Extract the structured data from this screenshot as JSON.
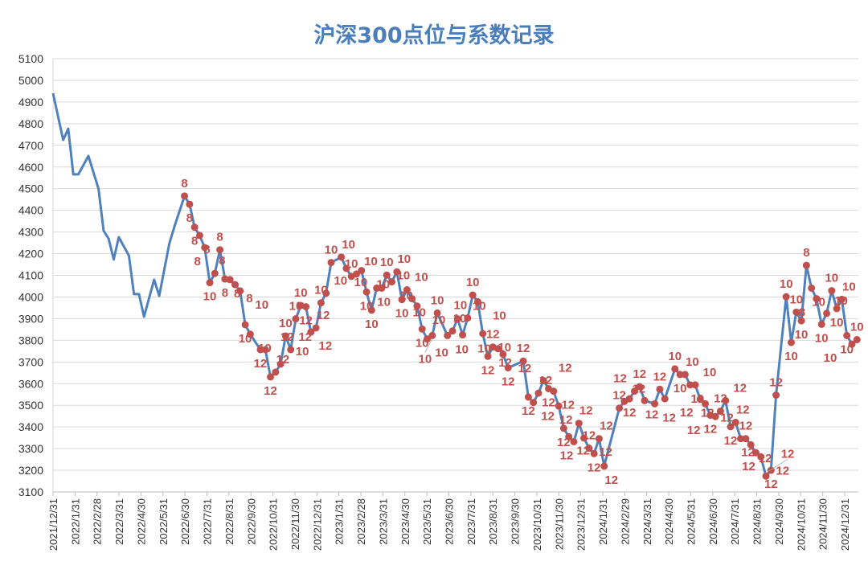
{
  "chart_data": {
    "type": "line",
    "title": "沪深300点位与系数记录",
    "xlabel": "",
    "ylabel": "",
    "ylim": [
      3100,
      5100
    ],
    "y_ticks": [
      3100,
      3200,
      3300,
      3400,
      3500,
      3600,
      3700,
      3800,
      3900,
      4000,
      4100,
      4200,
      4300,
      4400,
      4500,
      4600,
      4700,
      4800,
      4900,
      5000,
      5100
    ],
    "x_ticks": [
      "2021/12/31",
      "2022/1/31",
      "2022/2/28",
      "2022/3/31",
      "2022/4/30",
      "2022/5/31",
      "2022/6/30",
      "2022/7/31",
      "2022/8/31",
      "2022/9/30",
      "2022/10/31",
      "2022/11/30",
      "2022/12/31",
      "2023/1/31",
      "2023/2/28",
      "2023/3/31",
      "2023/4/30",
      "2023/5/31",
      "2023/6/30",
      "2023/7/31",
      "2023/8/31",
      "2023/9/30",
      "2023/10/31",
      "2023/11/30",
      "2023/12/31",
      "2024/1/31",
      "2024/2/29",
      "2024/3/31",
      "2024/4/30",
      "2024/5/31",
      "2024/6/30",
      "2024/7/31",
      "2024/8/31",
      "2024/9/30",
      "2024/10/31",
      "2024/11/30",
      "2024/12/31"
    ],
    "grid": "horizontal",
    "legend": "none",
    "colors": {
      "line": "#4f81bd",
      "marker": "#c0504d",
      "label": "#c0504d",
      "title": "#4a7ebb"
    },
    "series": [
      {
        "points": [
          [
            "2021-12-31",
            4940,
            ""
          ],
          [
            "2022-01-14",
            4725,
            ""
          ],
          [
            "2022-01-21",
            4777,
            ""
          ],
          [
            "2022-01-28",
            4566,
            ""
          ],
          [
            "2022-02-04",
            4566,
            ""
          ],
          [
            "2022-02-18",
            4651,
            ""
          ],
          [
            "2022-03-04",
            4499,
            ""
          ],
          [
            "2022-03-11",
            4306,
            ""
          ],
          [
            "2022-03-18",
            4269,
            ""
          ],
          [
            "2022-03-25",
            4173,
            ""
          ],
          [
            "2022-04-01",
            4276,
            ""
          ],
          [
            "2022-04-15",
            4191,
            ""
          ],
          [
            "2022-04-22",
            4013,
            ""
          ],
          [
            "2022-04-29",
            4013,
            ""
          ],
          [
            "2022-05-06",
            3909,
            ""
          ],
          [
            "2022-05-20",
            4080,
            ""
          ],
          [
            "2022-05-27",
            4005,
            ""
          ],
          [
            "2022-06-10",
            4247,
            ""
          ],
          [
            "2022-06-17",
            4325,
            ""
          ],
          [
            "2022-07-01",
            4466,
            "8"
          ],
          [
            "2022-07-08",
            4428,
            "8"
          ],
          [
            "2022-07-15",
            4322,
            "8"
          ],
          [
            "2022-07-22",
            4284,
            "8"
          ],
          [
            "2022-07-29",
            4228,
            "8"
          ],
          [
            "2022-08-05",
            4066,
            "10"
          ],
          [
            "2022-08-12",
            4109,
            "8"
          ],
          [
            "2022-08-19",
            4218,
            "8"
          ],
          [
            "2022-08-26",
            4083,
            "8"
          ],
          [
            "2022-09-02",
            4080,
            "8"
          ],
          [
            "2022-09-09",
            4057,
            "8"
          ],
          [
            "2022-09-16",
            4028,
            "10"
          ],
          [
            "2022-09-23",
            3872,
            "10"
          ],
          [
            "2022-09-30",
            3828,
            "10"
          ],
          [
            "2022-10-14",
            3757,
            "12"
          ],
          [
            "2022-10-21",
            3757,
            "12"
          ],
          [
            "2022-10-28",
            3631,
            "12"
          ],
          [
            "2022-11-04",
            3653,
            "12"
          ],
          [
            "2022-11-11",
            3690,
            "10"
          ],
          [
            "2022-11-18",
            3820,
            "10"
          ],
          [
            "2022-11-25",
            3757,
            "12"
          ],
          [
            "2022-12-02",
            3899,
            "10"
          ],
          [
            "2022-12-09",
            3961,
            "10"
          ],
          [
            "2022-12-16",
            3955,
            "12"
          ],
          [
            "2022-12-23",
            3838,
            "12"
          ],
          [
            "2022-12-30",
            3857,
            "12"
          ],
          [
            "2023-01-06",
            3973,
            "10"
          ],
          [
            "2023-01-13",
            4017,
            "10"
          ],
          [
            "2023-01-20",
            4159,
            "10"
          ],
          [
            "2023-02-03",
            4184,
            "10"
          ],
          [
            "2023-02-10",
            4132,
            "10"
          ],
          [
            "2023-02-17",
            4095,
            "10"
          ],
          [
            "2023-02-24",
            4106,
            "10"
          ],
          [
            "2023-03-03",
            4122,
            "10"
          ],
          [
            "2023-03-10",
            4023,
            "10"
          ],
          [
            "2023-03-17",
            3939,
            "10"
          ],
          [
            "2023-03-24",
            4041,
            "10"
          ],
          [
            "2023-03-31",
            4041,
            "10"
          ],
          [
            "2023-04-07",
            4101,
            "10"
          ],
          [
            "2023-04-14",
            4070,
            "10"
          ],
          [
            "2023-04-21",
            4116,
            "10"
          ],
          [
            "2023-04-28",
            3988,
            "10"
          ],
          [
            "2023-05-05",
            4033,
            "10"
          ],
          [
            "2023-05-12",
            3992,
            "10"
          ],
          [
            "2023-05-19",
            3958,
            "10"
          ],
          [
            "2023-05-26",
            3852,
            "10"
          ],
          [
            "2023-06-02",
            3806,
            "10"
          ],
          [
            "2023-06-09",
            3822,
            "10"
          ],
          [
            "2023-06-16",
            3926,
            "10"
          ],
          [
            "2023-06-30",
            3822,
            "10"
          ],
          [
            "2023-07-07",
            3843,
            "10"
          ],
          [
            "2023-07-14",
            3899,
            "10"
          ],
          [
            "2023-07-21",
            3825,
            "10"
          ],
          [
            "2023-07-28",
            3903,
            "10"
          ],
          [
            "2023-08-04",
            4009,
            "10"
          ],
          [
            "2023-08-11",
            3978,
            "10"
          ],
          [
            "2023-08-18",
            3831,
            "10"
          ],
          [
            "2023-08-25",
            3726,
            "12"
          ],
          [
            "2023-09-01",
            3769,
            "12"
          ],
          [
            "2023-09-08",
            3761,
            "12"
          ],
          [
            "2023-09-15",
            3735,
            "12"
          ],
          [
            "2023-09-22",
            3673,
            "12"
          ],
          [
            "2023-10-13",
            3704,
            "12"
          ],
          [
            "2023-10-20",
            3538,
            "12"
          ],
          [
            "2023-10-27",
            3513,
            "12"
          ],
          [
            "2023-11-03",
            3556,
            "12"
          ],
          [
            "2023-11-10",
            3614,
            "12"
          ],
          [
            "2023-11-17",
            3577,
            "12"
          ],
          [
            "2023-11-24",
            3565,
            "12"
          ],
          [
            "2023-12-01",
            3497,
            "12"
          ],
          [
            "2023-12-08",
            3394,
            "12"
          ],
          [
            "2023-12-15",
            3355,
            "12"
          ],
          [
            "2023-12-22",
            3332,
            "12"
          ],
          [
            "2023-12-29",
            3417,
            "12"
          ],
          [
            "2024-01-05",
            3349,
            "12"
          ],
          [
            "2024-01-12",
            3302,
            "12"
          ],
          [
            "2024-01-19",
            3277,
            "12"
          ],
          [
            "2024-01-26",
            3346,
            "12"
          ],
          [
            "2024-02-02",
            3219,
            "12"
          ],
          [
            "2024-02-23",
            3487,
            "12"
          ],
          [
            "2024-03-01",
            3518,
            "12"
          ],
          [
            "2024-03-08",
            3530,
            "12"
          ],
          [
            "2024-03-15",
            3565,
            "12"
          ],
          [
            "2024-03-22",
            3586,
            "12"
          ],
          [
            "2024-03-29",
            3522,
            "12"
          ],
          [
            "2024-04-12",
            3507,
            "12"
          ],
          [
            "2024-04-19",
            3574,
            "12"
          ],
          [
            "2024-04-26",
            3530,
            "12"
          ],
          [
            "2024-05-10",
            3668,
            "10"
          ],
          [
            "2024-05-17",
            3642,
            "10"
          ],
          [
            "2024-05-24",
            3642,
            "10"
          ],
          [
            "2024-05-31",
            3594,
            "10"
          ],
          [
            "2024-06-07",
            3594,
            "10"
          ],
          [
            "2024-06-14",
            3528,
            "12"
          ],
          [
            "2024-06-21",
            3507,
            "12"
          ],
          [
            "2024-06-28",
            3454,
            "12"
          ],
          [
            "2024-07-05",
            3448,
            "12"
          ],
          [
            "2024-07-12",
            3473,
            "12"
          ],
          [
            "2024-07-19",
            3522,
            "12"
          ],
          [
            "2024-07-26",
            3401,
            "12"
          ],
          [
            "2024-08-02",
            3421,
            "12"
          ],
          [
            "2024-08-09",
            3346,
            "12"
          ],
          [
            "2024-08-16",
            3346,
            "12"
          ],
          [
            "2024-08-23",
            3318,
            "12"
          ],
          [
            "2024-08-30",
            3281,
            "12"
          ],
          [
            "2024-09-06",
            3262,
            "12"
          ],
          [
            "2024-09-13",
            3173,
            "12"
          ],
          [
            "2024-09-20",
            3200,
            "12"
          ],
          [
            "2024-09-27",
            3547,
            "12"
          ],
          [
            "2024-10-11",
            4001,
            "10"
          ],
          [
            "2024-10-18",
            3790,
            "10"
          ],
          [
            "2024-10-25",
            3930,
            "10"
          ],
          [
            "2024-11-01",
            3890,
            "10"
          ],
          [
            "2024-11-08",
            4146,
            "8"
          ],
          [
            "2024-11-15",
            4041,
            "10"
          ],
          [
            "2024-11-22",
            3992,
            "8"
          ],
          [
            "2024-11-29",
            3874,
            "10"
          ],
          [
            "2024-12-06",
            3924,
            "10"
          ],
          [
            "2024-12-13",
            4029,
            "10"
          ],
          [
            "2024-12-20",
            3946,
            "10"
          ],
          [
            "2024-12-27",
            3989,
            "10"
          ],
          [
            "2025-01-03",
            3822,
            "10"
          ],
          [
            "2025-01-10",
            3782,
            "10"
          ],
          [
            "2025-01-17",
            3803,
            "10"
          ]
        ]
      }
    ]
  }
}
